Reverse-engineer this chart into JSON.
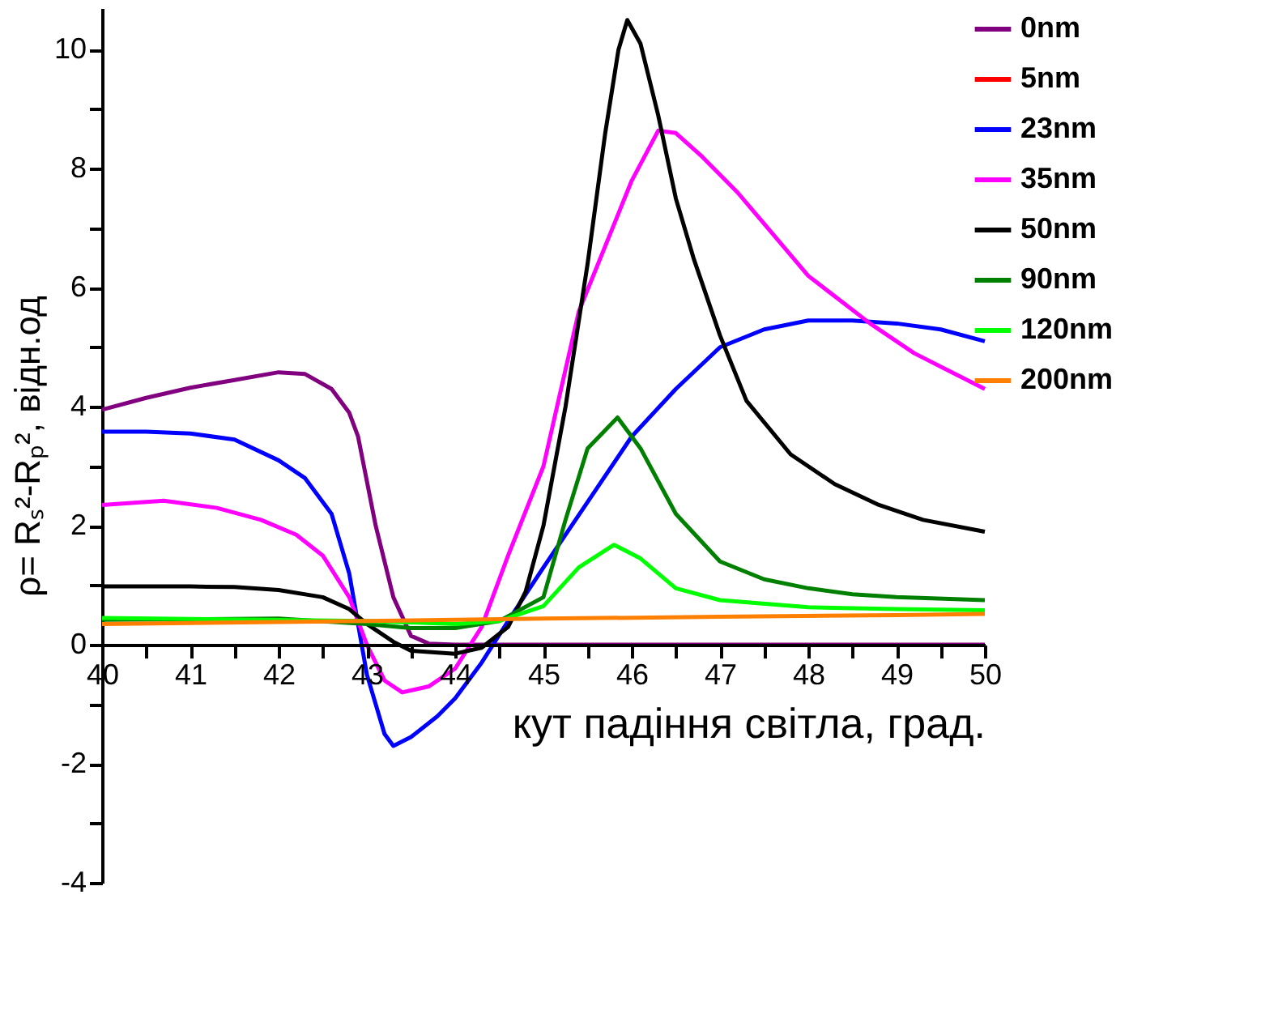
{
  "chart_data": {
    "type": "line",
    "xlabel": "кут падіння світла, град.",
    "ylabel": "ρ= Rₛ²-Rₚ², відн.од",
    "xlim": [
      40,
      50
    ],
    "xticks": [
      40,
      {
        "value": 40.5,
        "label": null
      },
      41,
      {
        "value": 41.5,
        "label": null
      },
      42,
      {
        "value": 42.5,
        "label": null
      },
      43,
      {
        "value": 43.5,
        "label": null
      },
      44,
      {
        "value": 44.5,
        "label": null
      },
      45,
      {
        "value": 45.5,
        "label": null
      },
      46,
      {
        "value": 46.5,
        "label": null
      },
      47,
      {
        "value": 47.5,
        "label": null
      },
      48,
      {
        "value": 48.5,
        "label": null
      },
      49,
      {
        "value": 49.5,
        "label": null
      },
      50
    ],
    "ylim": [
      -4,
      10.7
    ],
    "yticks": [
      -4,
      {
        "value": -3,
        "label": null
      },
      -2,
      {
        "value": -1,
        "label": null
      },
      0,
      {
        "value": 1,
        "label": null
      },
      2,
      {
        "value": 3,
        "label": null
      },
      4,
      {
        "value": 5,
        "label": null
      },
      6,
      {
        "value": 7,
        "label": null
      },
      8,
      {
        "value": 9,
        "label": null
      },
      10
    ],
    "grid": false,
    "legend": "top right",
    "line_style": "solid",
    "marker": "none",
    "series": [
      {
        "name": "0nm",
        "color": "#800080",
        "x": [
          40,
          40.5,
          41,
          41.5,
          42,
          42.3,
          42.6,
          42.8,
          42.9,
          43.1,
          43.3,
          43.5,
          43.7,
          44,
          45,
          46,
          47,
          48,
          49,
          50
        ],
        "values": [
          3.95,
          4.15,
          4.32,
          4.45,
          4.58,
          4.55,
          4.3,
          3.9,
          3.5,
          2.0,
          0.8,
          0.15,
          0.02,
          0,
          0,
          0,
          0,
          0,
          0,
          0
        ]
      },
      {
        "name": "5nm",
        "color": "#ff0000"
      },
      {
        "name": "23nm",
        "color": "#0000ff",
        "x": [
          40,
          40.5,
          41,
          41.5,
          42,
          42.3,
          42.6,
          42.8,
          43,
          43.2,
          43.3,
          43.5,
          43.8,
          44,
          44.3,
          44.6,
          45,
          45.5,
          46,
          46.5,
          47,
          47.5,
          48,
          48.5,
          49,
          49.5,
          50
        ],
        "values": [
          3.58,
          3.58,
          3.55,
          3.45,
          3.1,
          2.8,
          2.2,
          1.2,
          -0.5,
          -1.5,
          -1.7,
          -1.55,
          -1.2,
          -0.9,
          -0.3,
          0.4,
          1.3,
          2.4,
          3.5,
          4.3,
          5.0,
          5.3,
          5.45,
          5.45,
          5.4,
          5.3,
          5.1
        ]
      },
      {
        "name": "35nm",
        "color": "#ff00ff",
        "x": [
          40,
          40.7,
          41.3,
          41.8,
          42.2,
          42.5,
          42.8,
          43,
          43.2,
          43.4,
          43.7,
          44,
          44.3,
          44.6,
          45,
          45.4,
          46,
          46.3,
          46.5,
          46.8,
          47.2,
          47.6,
          48,
          48.7,
          49.2,
          49.6,
          50
        ],
        "values": [
          2.35,
          2.42,
          2.3,
          2.1,
          1.85,
          1.5,
          0.8,
          0,
          -0.6,
          -0.8,
          -0.7,
          -0.4,
          0.3,
          1.5,
          3.0,
          5.6,
          7.8,
          8.64,
          8.6,
          8.2,
          7.6,
          6.9,
          6.2,
          5.4,
          4.9,
          4.6,
          4.3
        ]
      },
      {
        "name": "50nm",
        "color": "#000000",
        "x": [
          40,
          41,
          41.5,
          42,
          42.5,
          42.8,
          43,
          43.3,
          43.5,
          44,
          44.3,
          44.6,
          44.8,
          45,
          45.25,
          45.5,
          45.7,
          45.85,
          45.95,
          46.1,
          46.3,
          46.5,
          46.7,
          47,
          47.3,
          47.8,
          48.3,
          48.8,
          49.3,
          50
        ],
        "values": [
          0.98,
          0.98,
          0.97,
          0.92,
          0.8,
          0.6,
          0.35,
          0.05,
          -0.1,
          -0.15,
          -0.05,
          0.3,
          0.9,
          2.0,
          4.0,
          6.4,
          8.6,
          10.0,
          10.5,
          10.1,
          8.9,
          7.5,
          6.5,
          5.2,
          4.1,
          3.2,
          2.7,
          2.35,
          2.1,
          1.9
        ]
      },
      {
        "name": "90nm",
        "color": "#008000",
        "x": [
          40,
          42,
          43,
          43.5,
          44,
          44.5,
          45,
          45.25,
          45.5,
          45.84,
          46.1,
          46.5,
          47,
          47.5,
          48,
          48.5,
          49,
          50
        ],
        "values": [
          0.42,
          0.44,
          0.35,
          0.28,
          0.28,
          0.4,
          0.8,
          2.1,
          3.3,
          3.82,
          3.3,
          2.2,
          1.4,
          1.1,
          0.95,
          0.85,
          0.8,
          0.75
        ]
      },
      {
        "name": "120nm",
        "color": "#00ff00",
        "x": [
          40,
          43,
          44,
          44.5,
          45,
          45.4,
          45.8,
          46.1,
          46.5,
          47,
          48,
          49,
          50
        ],
        "values": [
          0.45,
          0.4,
          0.35,
          0.4,
          0.65,
          1.3,
          1.68,
          1.45,
          0.95,
          0.75,
          0.63,
          0.6,
          0.58
        ]
      },
      {
        "name": "200nm",
        "color": "#ff8000",
        "x": [
          40,
          43,
          45,
          47,
          49,
          50
        ],
        "values": [
          0.35,
          0.4,
          0.44,
          0.47,
          0.5,
          0.52
        ]
      }
    ]
  }
}
